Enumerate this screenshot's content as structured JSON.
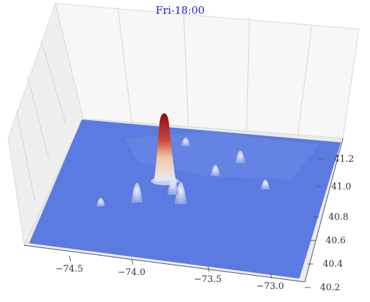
{
  "chart_data": {
    "type": "surface3d",
    "title": "Fri-18:00",
    "xlabel": "",
    "ylabel": "",
    "zlabel": "",
    "x_ticks": [
      "−74.5",
      "−74.0",
      "−73.5",
      "−73.0"
    ],
    "y_ticks": [
      "40.2",
      "40.4",
      "40.6",
      "40.8",
      "41.0",
      "41.2"
    ],
    "xlim": [
      -74.75,
      -72.75
    ],
    "ylim": [
      40.15,
      41.3
    ],
    "z_ticks_shown": false,
    "grid": true,
    "colormap": "coolwarm",
    "colors": {
      "low": "#5b7be0",
      "mid": "#dcdde6",
      "high": "#8e0e14"
    },
    "peaks": [
      {
        "x": -73.98,
        "y": 40.75,
        "height": 1.0
      },
      {
        "x": -73.78,
        "y": 40.65,
        "height": 0.18
      },
      {
        "x": -74.1,
        "y": 40.62,
        "height": 0.16
      },
      {
        "x": -73.86,
        "y": 40.72,
        "height": 0.15
      },
      {
        "x": -73.45,
        "y": 41.05,
        "height": 0.1
      },
      {
        "x": -73.6,
        "y": 40.92,
        "height": 0.09
      },
      {
        "x": -73.2,
        "y": 40.85,
        "height": 0.08
      },
      {
        "x": -74.35,
        "y": 40.55,
        "height": 0.07
      },
      {
        "x": -73.9,
        "y": 41.15,
        "height": 0.07
      }
    ]
  }
}
